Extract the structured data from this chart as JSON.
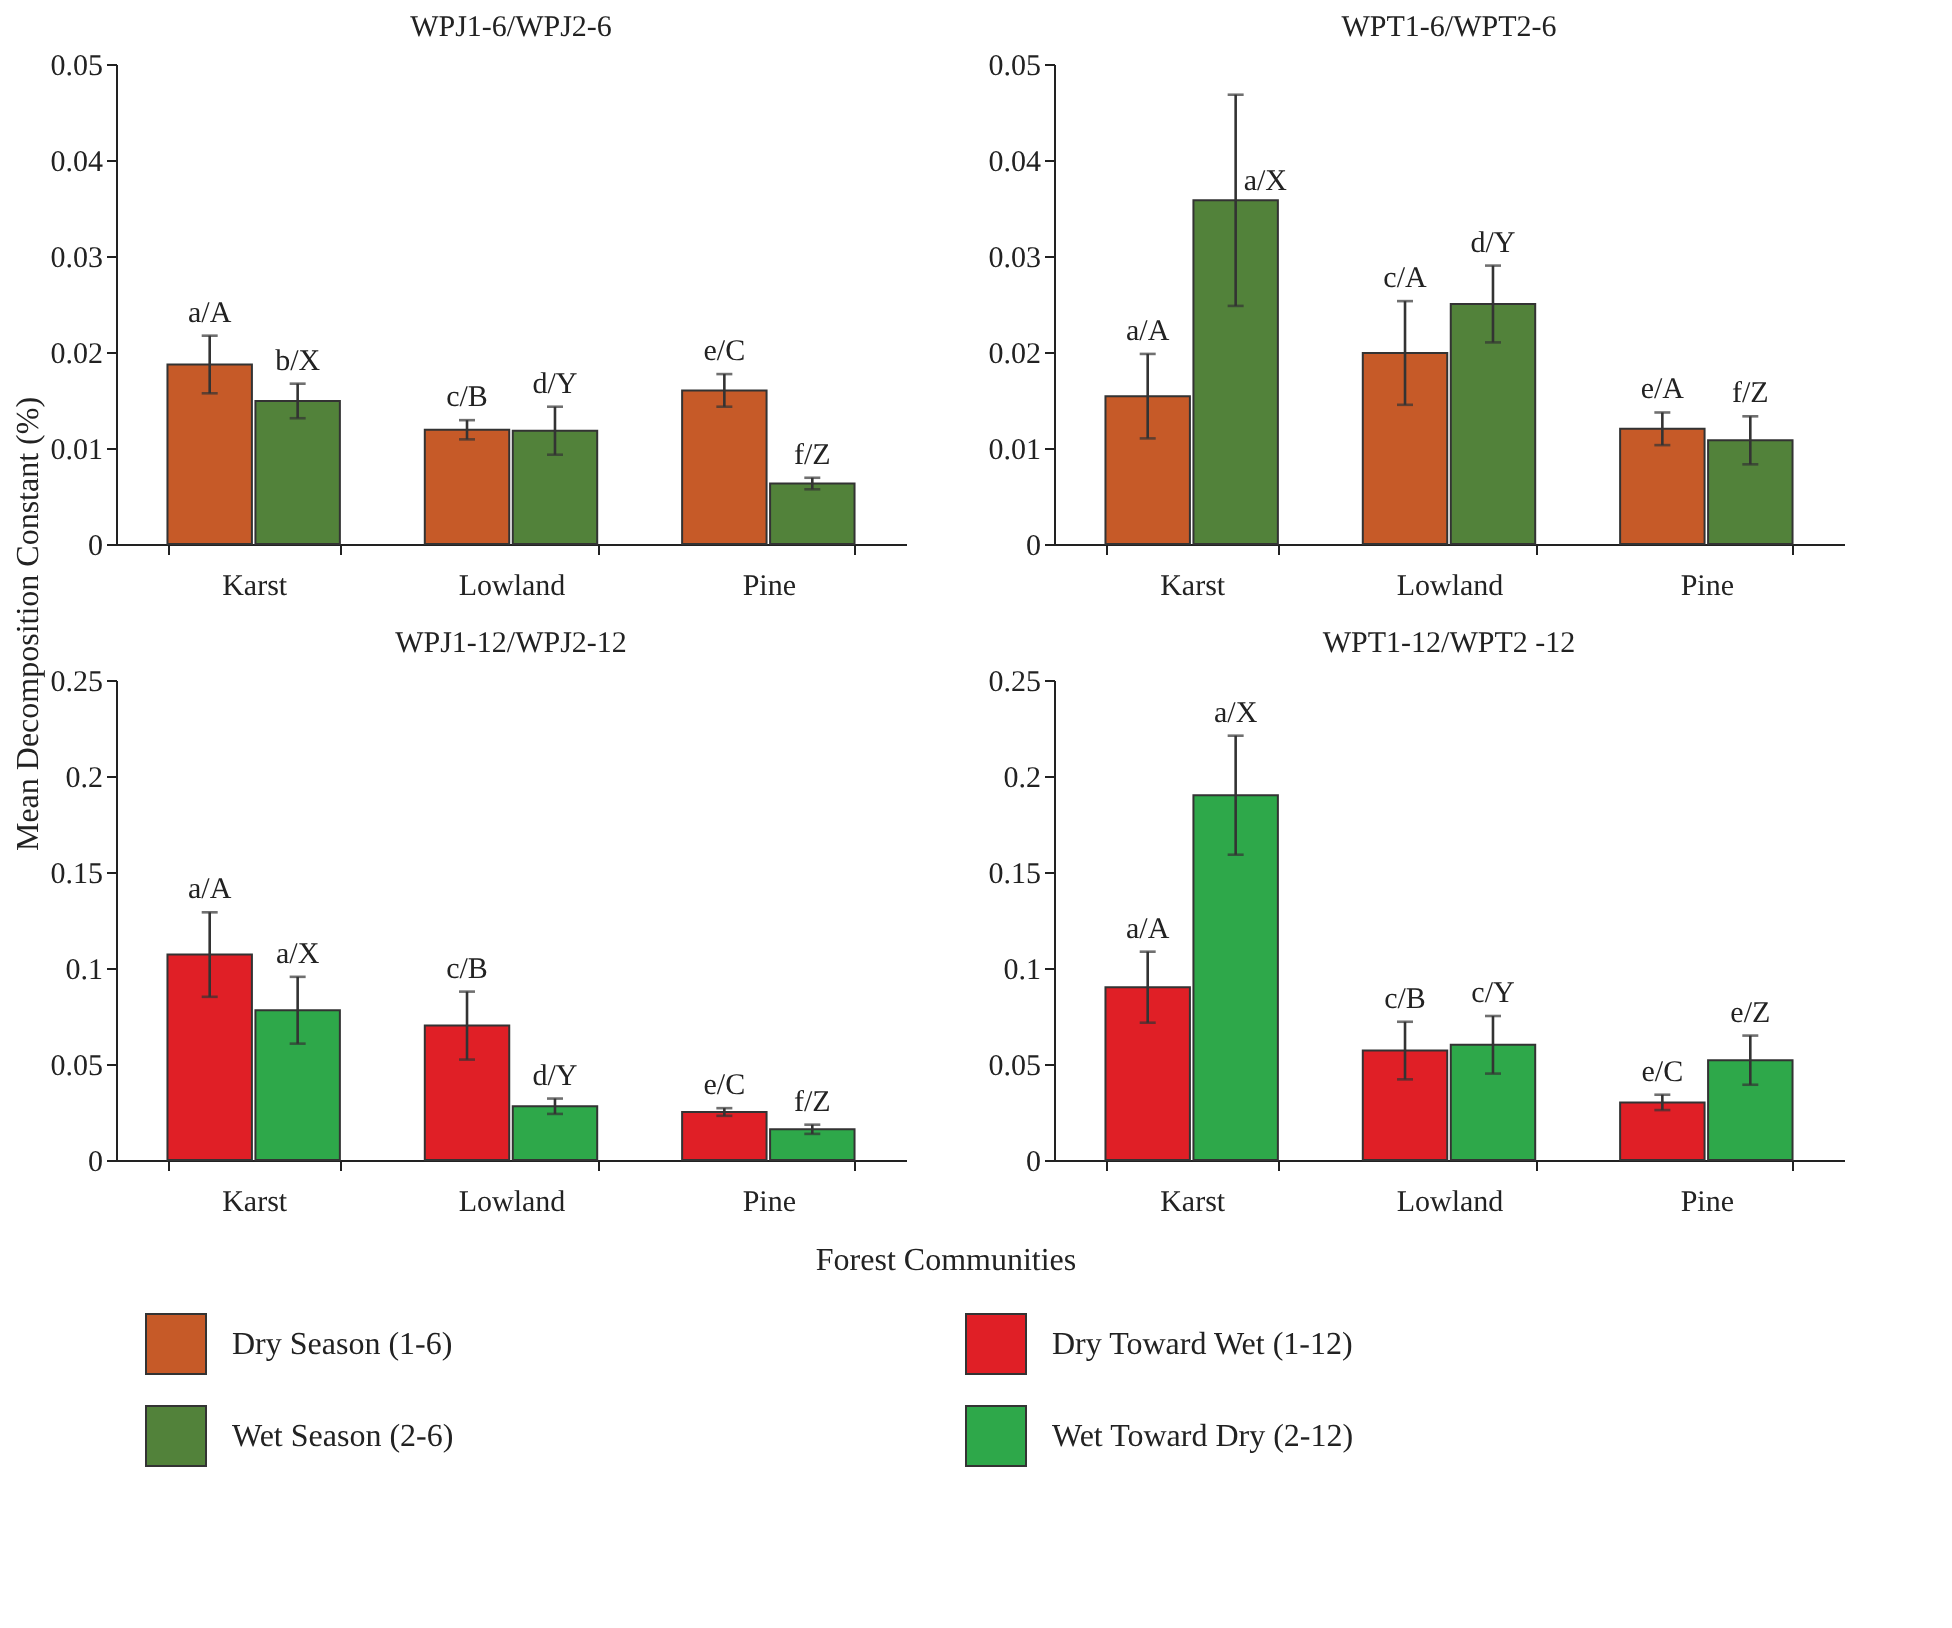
{
  "chart_data": [
    {
      "type": "bar",
      "title": "WPJ1-6/WPJ2-6",
      "ylabel": "Mean Decomposition Constant (%)",
      "categories": [
        "Karst",
        "Lowland",
        "Pine"
      ],
      "ylim": [
        0,
        0.05
      ],
      "yticks": [
        0,
        0.01,
        0.02,
        0.03,
        0.04,
        0.05
      ],
      "legend": "bottom",
      "series": [
        {
          "name": "Dry Season (1-6)",
          "color": "#c65a28",
          "values": [
            0.0187,
            0.0119,
            0.016
          ],
          "errors": [
            0.003,
            0.001,
            0.0017
          ],
          "value_labels": [
            "a/A",
            "c/B",
            "e/C"
          ]
        },
        {
          "name": "Wet Season (2-6)",
          "color": "#52823a",
          "values": [
            0.0149,
            0.0118,
            0.0063
          ],
          "errors": [
            0.0018,
            0.0025,
            0.0006
          ],
          "value_labels": [
            "b/X",
            "d/Y",
            "f/Z"
          ]
        }
      ]
    },
    {
      "type": "bar",
      "title": "WPT1-6/WPT2-6",
      "categories": [
        "Karst",
        "Lowland",
        "Pine"
      ],
      "ylim": [
        0,
        0.05
      ],
      "yticks": [
        0,
        0.01,
        0.02,
        0.03,
        0.04,
        0.05
      ],
      "legend": "bottom",
      "series": [
        {
          "name": "Dry Season (1-6)",
          "color": "#c65a28",
          "values": [
            0.0154,
            0.0199,
            0.012
          ],
          "errors": [
            0.0044,
            0.0054,
            0.0017
          ],
          "value_labels": [
            "a/A",
            "c/A",
            "e/A"
          ]
        },
        {
          "name": "Wet Season (2-6)",
          "color": "#52823a",
          "values": [
            0.0358,
            0.025,
            0.0108
          ],
          "errors": [
            0.011,
            0.004,
            0.0025
          ],
          "value_labels": [
            "a/X",
            "d/Y",
            "f/Z"
          ]
        }
      ]
    },
    {
      "type": "bar",
      "title": "WPJ1-12/WPJ2-12",
      "xlabel": "Forest Communities",
      "categories": [
        "Karst",
        "Lowland",
        "Pine"
      ],
      "ylim": [
        0,
        0.25
      ],
      "yticks": [
        0,
        0.05,
        0.1,
        0.15,
        0.2,
        0.25
      ],
      "legend": "bottom",
      "series": [
        {
          "name": "Dry Toward Wet (1-12)",
          "color": "#e01f26",
          "values": [
            0.107,
            0.07,
            0.025
          ],
          "errors": [
            0.022,
            0.0177,
            0.002
          ],
          "value_labels": [
            "a/A",
            "c/B",
            "e/C"
          ]
        },
        {
          "name": "Wet Toward Dry (2-12)",
          "color": "#2ea84a",
          "values": [
            0.078,
            0.028,
            0.016
          ],
          "errors": [
            0.0174,
            0.004,
            0.0024
          ],
          "value_labels": [
            "a/X",
            "d/Y",
            "f/Z"
          ]
        }
      ]
    },
    {
      "type": "bar",
      "title": "WPT1-12/WPT2 -12",
      "categories": [
        "Karst",
        "Lowland",
        "Pine"
      ],
      "ylim": [
        0,
        0.25
      ],
      "yticks": [
        0,
        0.05,
        0.1,
        0.15,
        0.2,
        0.25
      ],
      "legend": "bottom",
      "series": [
        {
          "name": "Dry Toward Wet (1-12)",
          "color": "#e01f26",
          "values": [
            0.09,
            0.057,
            0.03
          ],
          "errors": [
            0.0185,
            0.015,
            0.004
          ],
          "value_labels": [
            "a/A",
            "c/B",
            "e/C"
          ]
        },
        {
          "name": "Wet Toward Dry (2-12)",
          "color": "#2ea84a",
          "values": [
            0.19,
            0.06,
            0.052
          ],
          "errors": [
            0.031,
            0.015,
            0.0128
          ],
          "value_labels": [
            "a/X",
            "c/Y",
            "e/Z"
          ]
        }
      ]
    }
  ]
}
